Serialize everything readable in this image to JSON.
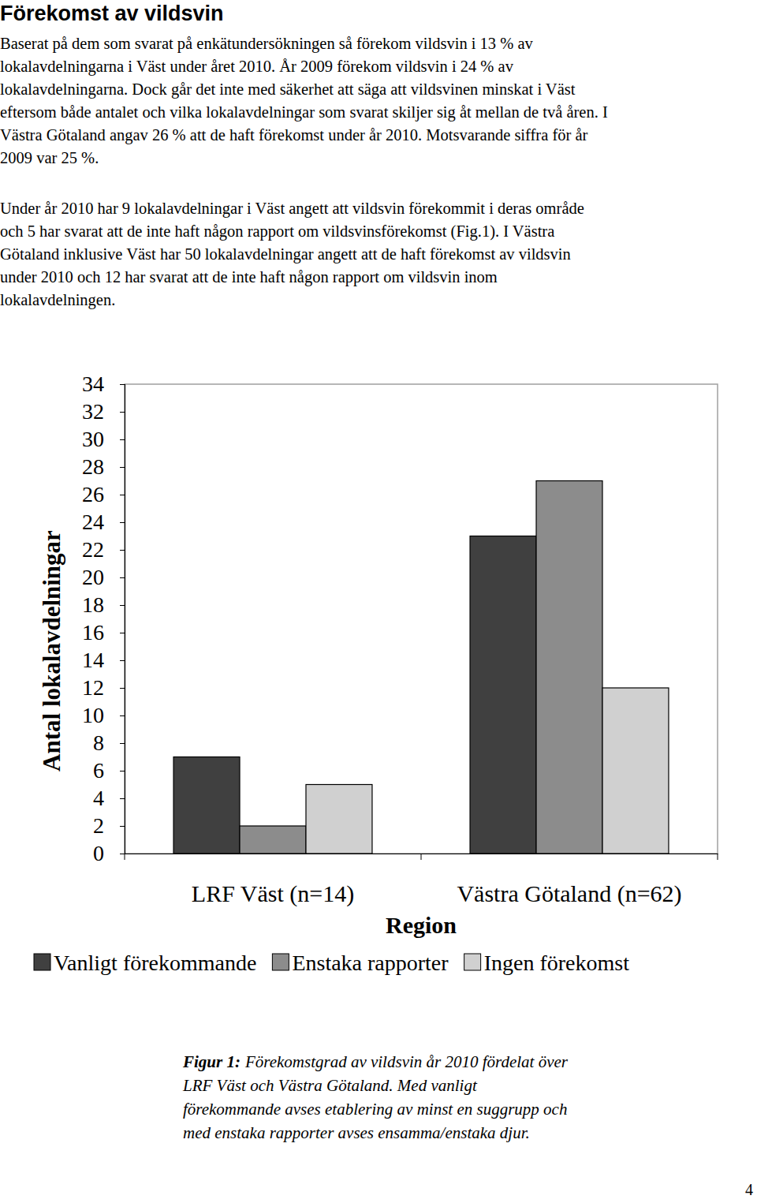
{
  "document": {
    "heading": "Förekomst av vildsvin",
    "paragraphs": [
      [
        "Baserat på dem som svarat på enkätundersökningen så förekom vildsvin i 13 % av",
        "lokalavdelningarna i Väst under året 2010. År 2009 förekom vildsvin i 24 % av",
        "lokalavdelningarna. Dock går det inte med säkerhet att säga att vildsvinen minskat i Väst",
        "eftersom både antalet och vilka lokalavdelningar som svarat skiljer sig åt mellan de två åren. I",
        "Västra Götaland angav 26 % att de haft förekomst under år 2010. Motsvarande siffra för år",
        "2009 var 25 %."
      ],
      [
        "Under år 2010 har 9 lokalavdelningar i Väst angett att vildsvin förekommit i deras område",
        "och 5 har svarat att de inte haft någon rapport om vildsvinsförekomst (Fig.1). I Västra",
        "Götaland inklusive Väst har 50 lokalavdelningar angett att de haft förekomst av vildsvin",
        "under 2010 och 12 har svarat att de inte haft någon rapport om vildsvin inom",
        "lokalavdelningen."
      ]
    ],
    "caption": {
      "label": "Figur 1:",
      "lines": [
        "Förekomstgrad av vildsvin år 2010 fördelat över",
        "LRF Väst och Västra Götaland. Med vanligt",
        "förekommande avses etablering av minst en suggrupp och",
        "med enstaka rapporter avses ensamma/enstaka djur."
      ]
    },
    "page_number": "4"
  },
  "chart_data": {
    "type": "bar",
    "x_label": "Region",
    "y_label": "Antal lokalavdelningar",
    "categories": [
      "LRF Väst (n=14)",
      "Västra Götaland (n=62)"
    ],
    "series": [
      {
        "name": "Vanligt förekommande",
        "color": "#404040",
        "values": [
          7,
          23
        ]
      },
      {
        "name": "Enstaka rapporter",
        "color": "#8c8c8c",
        "values": [
          2,
          27
        ]
      },
      {
        "name": "Ingen förekomst",
        "color": "#d0d0d0",
        "values": [
          5,
          12
        ]
      }
    ],
    "ylim": [
      0,
      34
    ],
    "yticks": [
      0,
      2,
      4,
      6,
      8,
      10,
      12,
      14,
      16,
      18,
      20,
      22,
      24,
      26,
      28,
      30,
      32,
      34
    ],
    "grid": false,
    "legend": "bottom"
  }
}
